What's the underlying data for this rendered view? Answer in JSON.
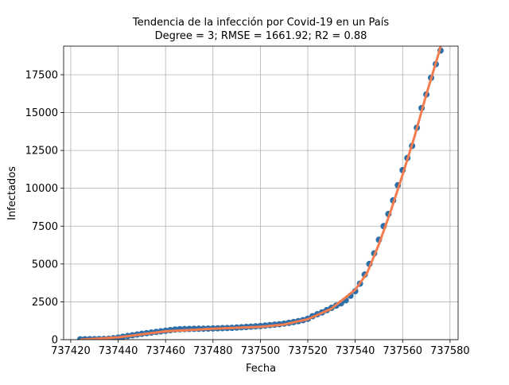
{
  "chart_data": {
    "type": "scatter",
    "title": "Tendencia de la infección por Covid-19 en un País",
    "subtitle": "Degree = 3; RMSE = 1661.92; R2 = 0.88",
    "x_label": "Fecha",
    "y_label": "Infectados",
    "xlim": [
      737417,
      737583.4
    ],
    "ylim": [
      0,
      19390
    ],
    "xticks": [
      737420,
      737440,
      737460,
      737480,
      737500,
      737520,
      737540,
      737560,
      737580
    ],
    "yticks": [
      0,
      2500,
      5000,
      7500,
      10000,
      12500,
      15000,
      17500
    ],
    "grid": true,
    "series": [
      {
        "type": "scatter",
        "color": "#2f6fa8",
        "x": [
          737424,
          737426,
          737428,
          737430,
          737432,
          737434,
          737436,
          737438,
          737440,
          737442,
          737444,
          737446,
          737448,
          737450,
          737452,
          737454,
          737456,
          737458,
          737460,
          737462,
          737464,
          737466,
          737468,
          737470,
          737472,
          737474,
          737476,
          737478,
          737480,
          737482,
          737484,
          737486,
          737488,
          737490,
          737492,
          737494,
          737496,
          737498,
          737500,
          737502,
          737504,
          737506,
          737508,
          737510,
          737512,
          737514,
          737516,
          737518,
          737520,
          737522,
          737524,
          737526,
          737528,
          737530,
          737532,
          737534,
          737536,
          737538,
          737540,
          737542,
          737544,
          737546,
          737548,
          737550,
          737552,
          737554,
          737556,
          737558,
          737560,
          737562,
          737564,
          737566,
          737568,
          737570,
          737572,
          737574,
          737576
        ],
        "values": [
          20,
          25,
          30,
          35,
          40,
          45,
          60,
          90,
          140,
          190,
          240,
          290,
          340,
          390,
          430,
          470,
          510,
          550,
          590,
          630,
          670,
          690,
          700,
          710,
          715,
          720,
          725,
          730,
          740,
          750,
          760,
          770,
          780,
          800,
          820,
          840,
          860,
          880,
          900,
          930,
          960,
          990,
          1020,
          1060,
          1110,
          1160,
          1220,
          1290,
          1380,
          1550,
          1680,
          1800,
          1950,
          2100,
          2250,
          2400,
          2600,
          2900,
          3200,
          3700,
          4300,
          5000,
          5700,
          6600,
          7500,
          8300,
          9200,
          10200,
          11200,
          12000,
          12800,
          14000,
          15300,
          16200,
          17300,
          18200,
          19100
        ]
      },
      {
        "type": "line",
        "color": "#f47c4f",
        "x": [
          737424,
          737440,
          737460,
          737480,
          737500,
          737510,
          737520,
          737530,
          737540,
          737545,
          737550,
          737555,
          737560,
          737565,
          737570,
          737575,
          737578
        ],
        "values": [
          0,
          150,
          550,
          720,
          850,
          1000,
          1350,
          2050,
          3300,
          4400,
          6300,
          8500,
          10900,
          13400,
          16200,
          18800,
          20500
        ]
      }
    ]
  }
}
